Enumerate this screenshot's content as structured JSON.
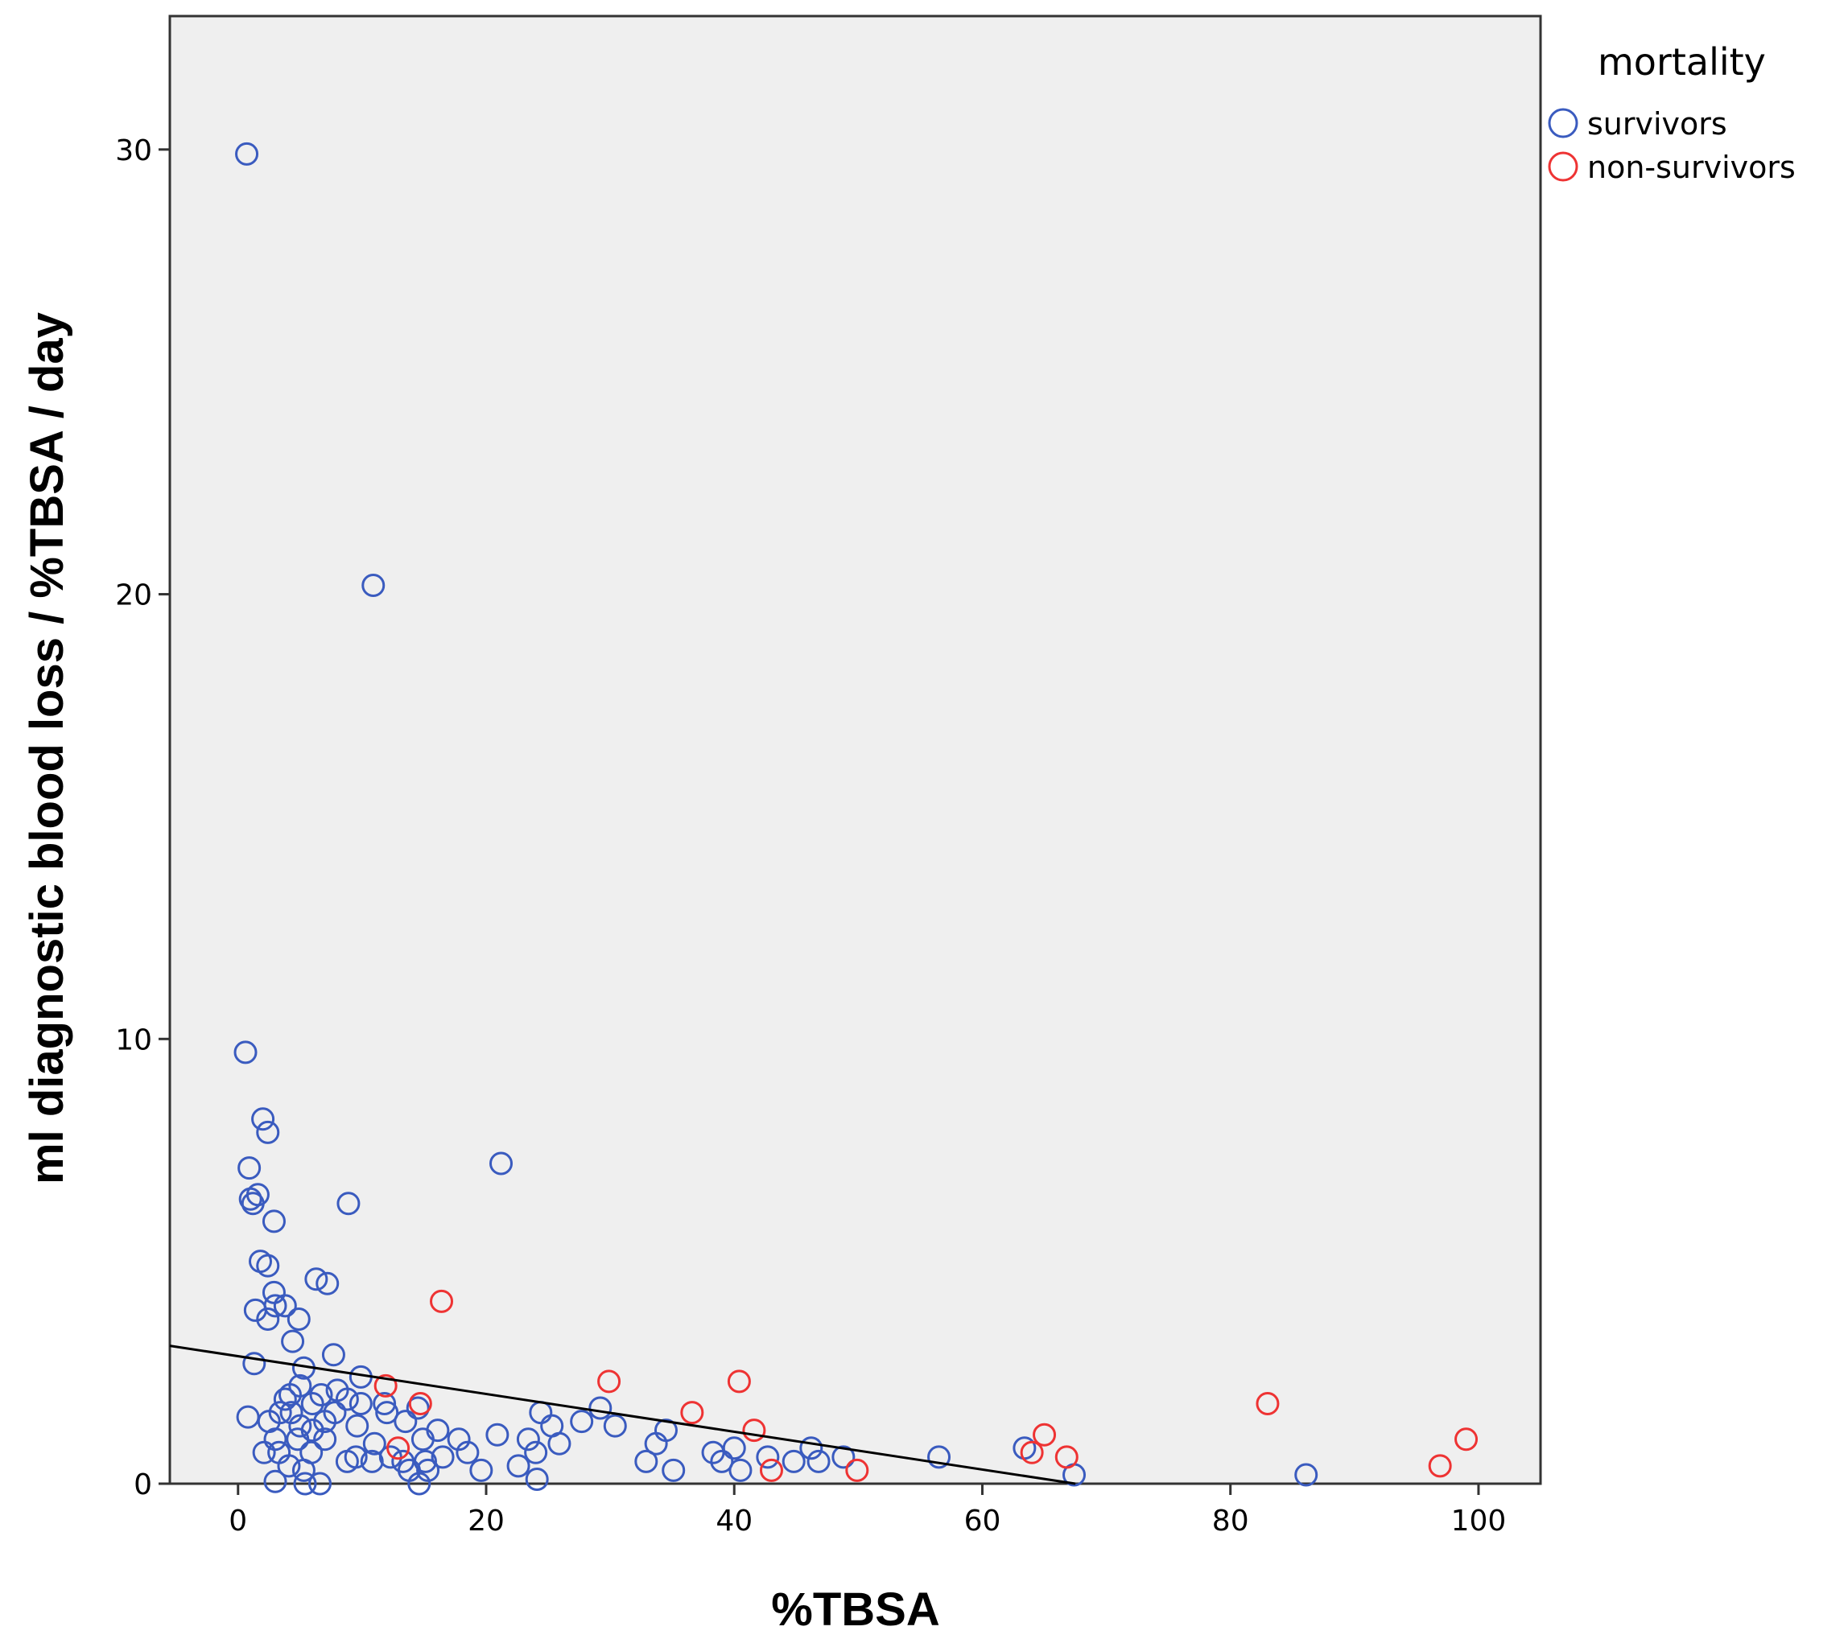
{
  "chart_data": {
    "type": "scatter",
    "xlabel": "%TBSA",
    "ylabel": "ml diagnostic blood loss / %TBSA / day",
    "xlim": [
      -5.5,
      105
    ],
    "ylim": [
      0,
      33
    ],
    "xticks": [
      "0",
      "20",
      "40",
      "60",
      "80",
      "100"
    ],
    "yticks": [
      "0",
      "10",
      "20",
      "30"
    ],
    "legend": {
      "title": "mortality",
      "placement": "top-right"
    },
    "fit_line": {
      "x": [
        -5.5,
        67.5
      ],
      "y": [
        3.1,
        0
      ],
      "color": "#000000"
    },
    "series": [
      {
        "name": "survivors",
        "color": "#3a5bbf",
        "points": [
          [
            0.7,
            29.9
          ],
          [
            10.9,
            20.2
          ],
          [
            0.6,
            9.7
          ],
          [
            2.0,
            8.2
          ],
          [
            2.4,
            7.9
          ],
          [
            0.9,
            7.1
          ],
          [
            21.2,
            7.2
          ],
          [
            1.0,
            6.4
          ],
          [
            1.6,
            6.5
          ],
          [
            1.2,
            6.3
          ],
          [
            8.9,
            6.3
          ],
          [
            2.9,
            5.9
          ],
          [
            1.8,
            5.0
          ],
          [
            2.4,
            4.9
          ],
          [
            6.3,
            4.6
          ],
          [
            7.2,
            4.5
          ],
          [
            2.9,
            4.3
          ],
          [
            1.4,
            3.9
          ],
          [
            3.0,
            4.0
          ],
          [
            3.8,
            4.0
          ],
          [
            2.4,
            3.7
          ],
          [
            4.9,
            3.7
          ],
          [
            4.4,
            3.2
          ],
          [
            7.7,
            2.9
          ],
          [
            1.3,
            2.7
          ],
          [
            5.3,
            2.6
          ],
          [
            9.9,
            2.4
          ],
          [
            5.0,
            2.2
          ],
          [
            4.2,
            2.0
          ],
          [
            6.7,
            2.0
          ],
          [
            3.8,
            1.9
          ],
          [
            8.0,
            2.1
          ],
          [
            8.8,
            1.9
          ],
          [
            6.0,
            1.8
          ],
          [
            9.9,
            1.8
          ],
          [
            11.8,
            1.8
          ],
          [
            0.8,
            1.5
          ],
          [
            3.4,
            1.6
          ],
          [
            4.3,
            1.6
          ],
          [
            7.8,
            1.6
          ],
          [
            12.0,
            1.6
          ],
          [
            14.5,
            1.7
          ],
          [
            24.4,
            1.6
          ],
          [
            29.2,
            1.7
          ],
          [
            2.5,
            1.4
          ],
          [
            5.0,
            1.3
          ],
          [
            6.0,
            1.2
          ],
          [
            7.0,
            1.4
          ],
          [
            9.6,
            1.3
          ],
          [
            13.5,
            1.4
          ],
          [
            16.1,
            1.2
          ],
          [
            20.9,
            1.1
          ],
          [
            25.3,
            1.3
          ],
          [
            27.7,
            1.4
          ],
          [
            30.4,
            1.3
          ],
          [
            34.5,
            1.2
          ],
          [
            3.0,
            1.0
          ],
          [
            4.8,
            1.0
          ],
          [
            7.0,
            1.0
          ],
          [
            11.0,
            0.9
          ],
          [
            14.9,
            1.0
          ],
          [
            17.8,
            1.0
          ],
          [
            23.4,
            1.0
          ],
          [
            25.9,
            0.9
          ],
          [
            33.7,
            0.9
          ],
          [
            40.0,
            0.8
          ],
          [
            2.1,
            0.7
          ],
          [
            3.3,
            0.7
          ],
          [
            5.9,
            0.7
          ],
          [
            9.5,
            0.6
          ],
          [
            12.3,
            0.6
          ],
          [
            16.5,
            0.6
          ],
          [
            18.5,
            0.7
          ],
          [
            24.0,
            0.7
          ],
          [
            38.3,
            0.7
          ],
          [
            42.7,
            0.6
          ],
          [
            46.2,
            0.8
          ],
          [
            48.8,
            0.6
          ],
          [
            56.5,
            0.6
          ],
          [
            63.4,
            0.8
          ],
          [
            4.1,
            0.4
          ],
          [
            8.8,
            0.5
          ],
          [
            10.8,
            0.5
          ],
          [
            13.3,
            0.5
          ],
          [
            15.1,
            0.5
          ],
          [
            22.6,
            0.4
          ],
          [
            32.9,
            0.5
          ],
          [
            39.0,
            0.5
          ],
          [
            44.8,
            0.5
          ],
          [
            46.8,
            0.5
          ],
          [
            5.3,
            0.3
          ],
          [
            13.8,
            0.3
          ],
          [
            15.3,
            0.3
          ],
          [
            19.6,
            0.3
          ],
          [
            35.1,
            0.3
          ],
          [
            40.5,
            0.3
          ],
          [
            3.0,
            0.05
          ],
          [
            5.4,
            0.0
          ],
          [
            6.6,
            0.0
          ],
          [
            14.6,
            0.0
          ],
          [
            24.1,
            0.1
          ],
          [
            67.4,
            0.2
          ],
          [
            86.1,
            0.2
          ]
        ]
      },
      {
        "name": "non-survivors",
        "color": "#ee3333",
        "points": [
          [
            16.4,
            4.1
          ],
          [
            11.9,
            2.2
          ],
          [
            14.7,
            1.8
          ],
          [
            12.9,
            0.8
          ],
          [
            29.9,
            2.3
          ],
          [
            40.4,
            2.3
          ],
          [
            36.6,
            1.6
          ],
          [
            41.6,
            1.2
          ],
          [
            43.0,
            0.3
          ],
          [
            49.9,
            0.3
          ],
          [
            65.0,
            1.1
          ],
          [
            64.0,
            0.7
          ],
          [
            66.8,
            0.6
          ],
          [
            83.0,
            1.8
          ],
          [
            99.0,
            1.0
          ],
          [
            96.9,
            0.4
          ]
        ]
      }
    ]
  }
}
